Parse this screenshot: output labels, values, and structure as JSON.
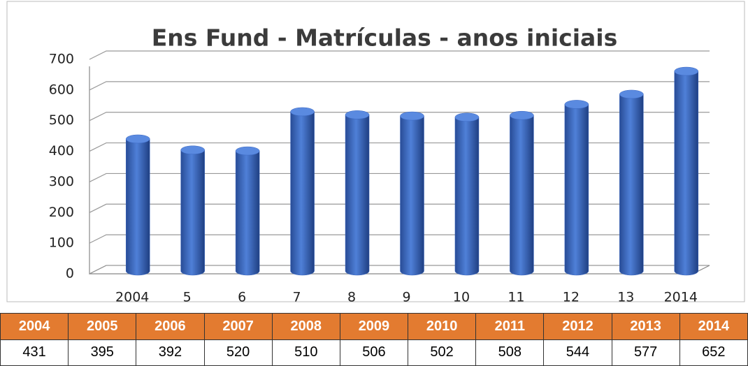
{
  "chart_data": {
    "type": "bar",
    "title": "Ens Fund - Matrículas - anos iniciais",
    "categories": [
      "2004",
      "5",
      "6",
      "7",
      "8",
      "9",
      "10",
      "11",
      "12",
      "13",
      "2014"
    ],
    "values": [
      431,
      395,
      392,
      520,
      510,
      506,
      502,
      508,
      544,
      577,
      652
    ],
    "color": "#3a66c0",
    "ylim": [
      0,
      700
    ],
    "yticks": [
      0,
      100,
      200,
      300,
      400,
      500,
      600,
      700
    ],
    "grid": true
  },
  "table": {
    "header": [
      "2004",
      "2005",
      "2006",
      "2007",
      "2008",
      "2009",
      "2010",
      "2011",
      "2012",
      "2013",
      "2014"
    ]
  }
}
